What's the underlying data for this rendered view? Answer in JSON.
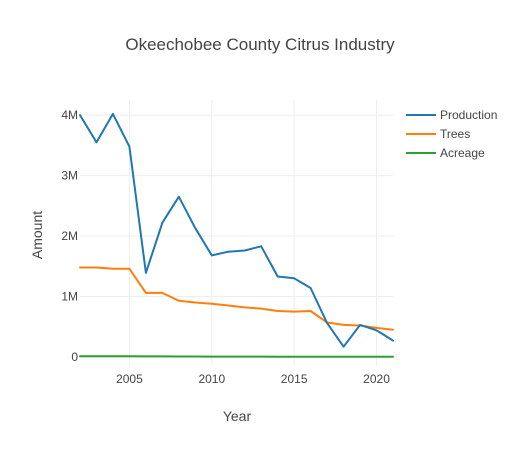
{
  "chart_data": {
    "type": "line",
    "title": "Okeechobee County Citrus Industry",
    "xlabel": "Year",
    "ylabel": "Amount",
    "xlim": [
      2002,
      2021
    ],
    "ylim": [
      -150000,
      4250000
    ],
    "x_ticks": [
      2005,
      2010,
      2015,
      2020
    ],
    "x_tick_labels": [
      "2005",
      "2010",
      "2015",
      "2020"
    ],
    "y_ticks": [
      0,
      1000000,
      2000000,
      3000000,
      4000000
    ],
    "y_tick_labels": [
      "0",
      "1M",
      "2M",
      "3M",
      "4M"
    ],
    "grid": true,
    "legend_position": "top-right",
    "x": [
      2002,
      2003,
      2004,
      2005,
      2006,
      2007,
      2008,
      2009,
      2010,
      2011,
      2012,
      2013,
      2014,
      2015,
      2016,
      2017,
      2018,
      2019,
      2020,
      2021
    ],
    "series": [
      {
        "name": "Production",
        "color": "#1f77b4",
        "values": [
          4000000,
          3550000,
          4020000,
          3480000,
          1390000,
          2220000,
          2650000,
          2130000,
          1680000,
          1740000,
          1760000,
          1830000,
          1330000,
          1300000,
          1140000,
          560000,
          170000,
          530000,
          440000,
          270000
        ]
      },
      {
        "name": "Trees",
        "color": "#ff7f0e",
        "values": [
          1480000,
          1480000,
          1460000,
          1460000,
          1060000,
          1060000,
          930000,
          900000,
          880000,
          850000,
          820000,
          800000,
          760000,
          750000,
          760000,
          570000,
          530000,
          520000,
          480000,
          450000
        ]
      },
      {
        "name": "Acreage",
        "color": "#2ca02c",
        "values": [
          10000,
          10000,
          10000,
          10000,
          8000,
          8000,
          7000,
          7000,
          6000,
          6000,
          5000,
          5000,
          4000,
          4000,
          3500,
          3000,
          2500,
          2500,
          2000,
          2000
        ]
      }
    ]
  }
}
